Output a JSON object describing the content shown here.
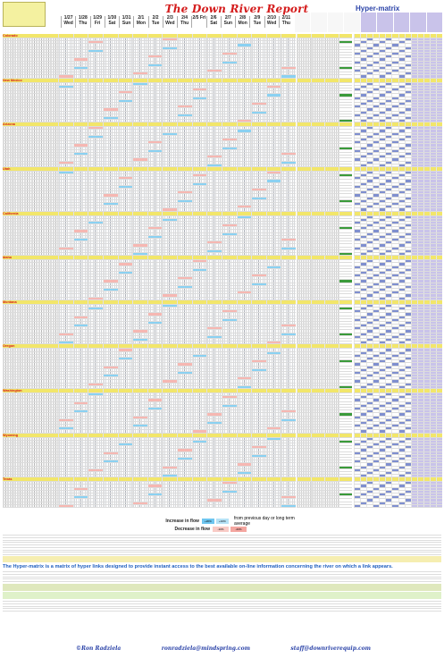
{
  "report": {
    "title": "The Down River Report",
    "dates": [
      "1/27 Wed",
      "1/28 Thu",
      "1/29 Fri",
      "1/30 Sat",
      "1/31 Sun",
      "2/1 Mon",
      "2/2 Tue",
      "2/3 Wed",
      "2/4 Thu",
      "2/5 Fri",
      "2/6 Sat",
      "2/7 Sun",
      "2/8 Mon",
      "2/9 Tue",
      "2/10 Wed",
      "2/11 Thu"
    ],
    "hyper_title": "Hyper-matrix"
  },
  "sections": [
    "Colorado",
    "New Mexico",
    "Arizona",
    "Utah",
    "California",
    "Idaho",
    "Montana",
    "Oregon",
    "Washington",
    "Wyoming",
    "Texas"
  ],
  "legend": {
    "increase_label": "Increase in flow",
    "decrease_label": "Decrease in flow",
    "chips": [
      "+20%",
      "+10%",
      "-10%",
      "-20%"
    ],
    "tail": "from previous day or long term average"
  },
  "footer": {
    "hyper_line": "The Hyper-matrix is a matrix of hyper links designed to provide instant access to the best available on-line information concerning the river on which a link appears.",
    "credit_name": "©Ron Radziela",
    "credit_email": "ronradziela@mindspring.com",
    "credit_staff": "staff@downriverequip.com"
  },
  "colors": {
    "title": "#d41b1b",
    "section_bg": "#f2e66a",
    "increase": "#6ec6f0",
    "decrease": "#f4a6a0",
    "matrix": "#c9c3ea",
    "green": "#3a9a3a"
  }
}
